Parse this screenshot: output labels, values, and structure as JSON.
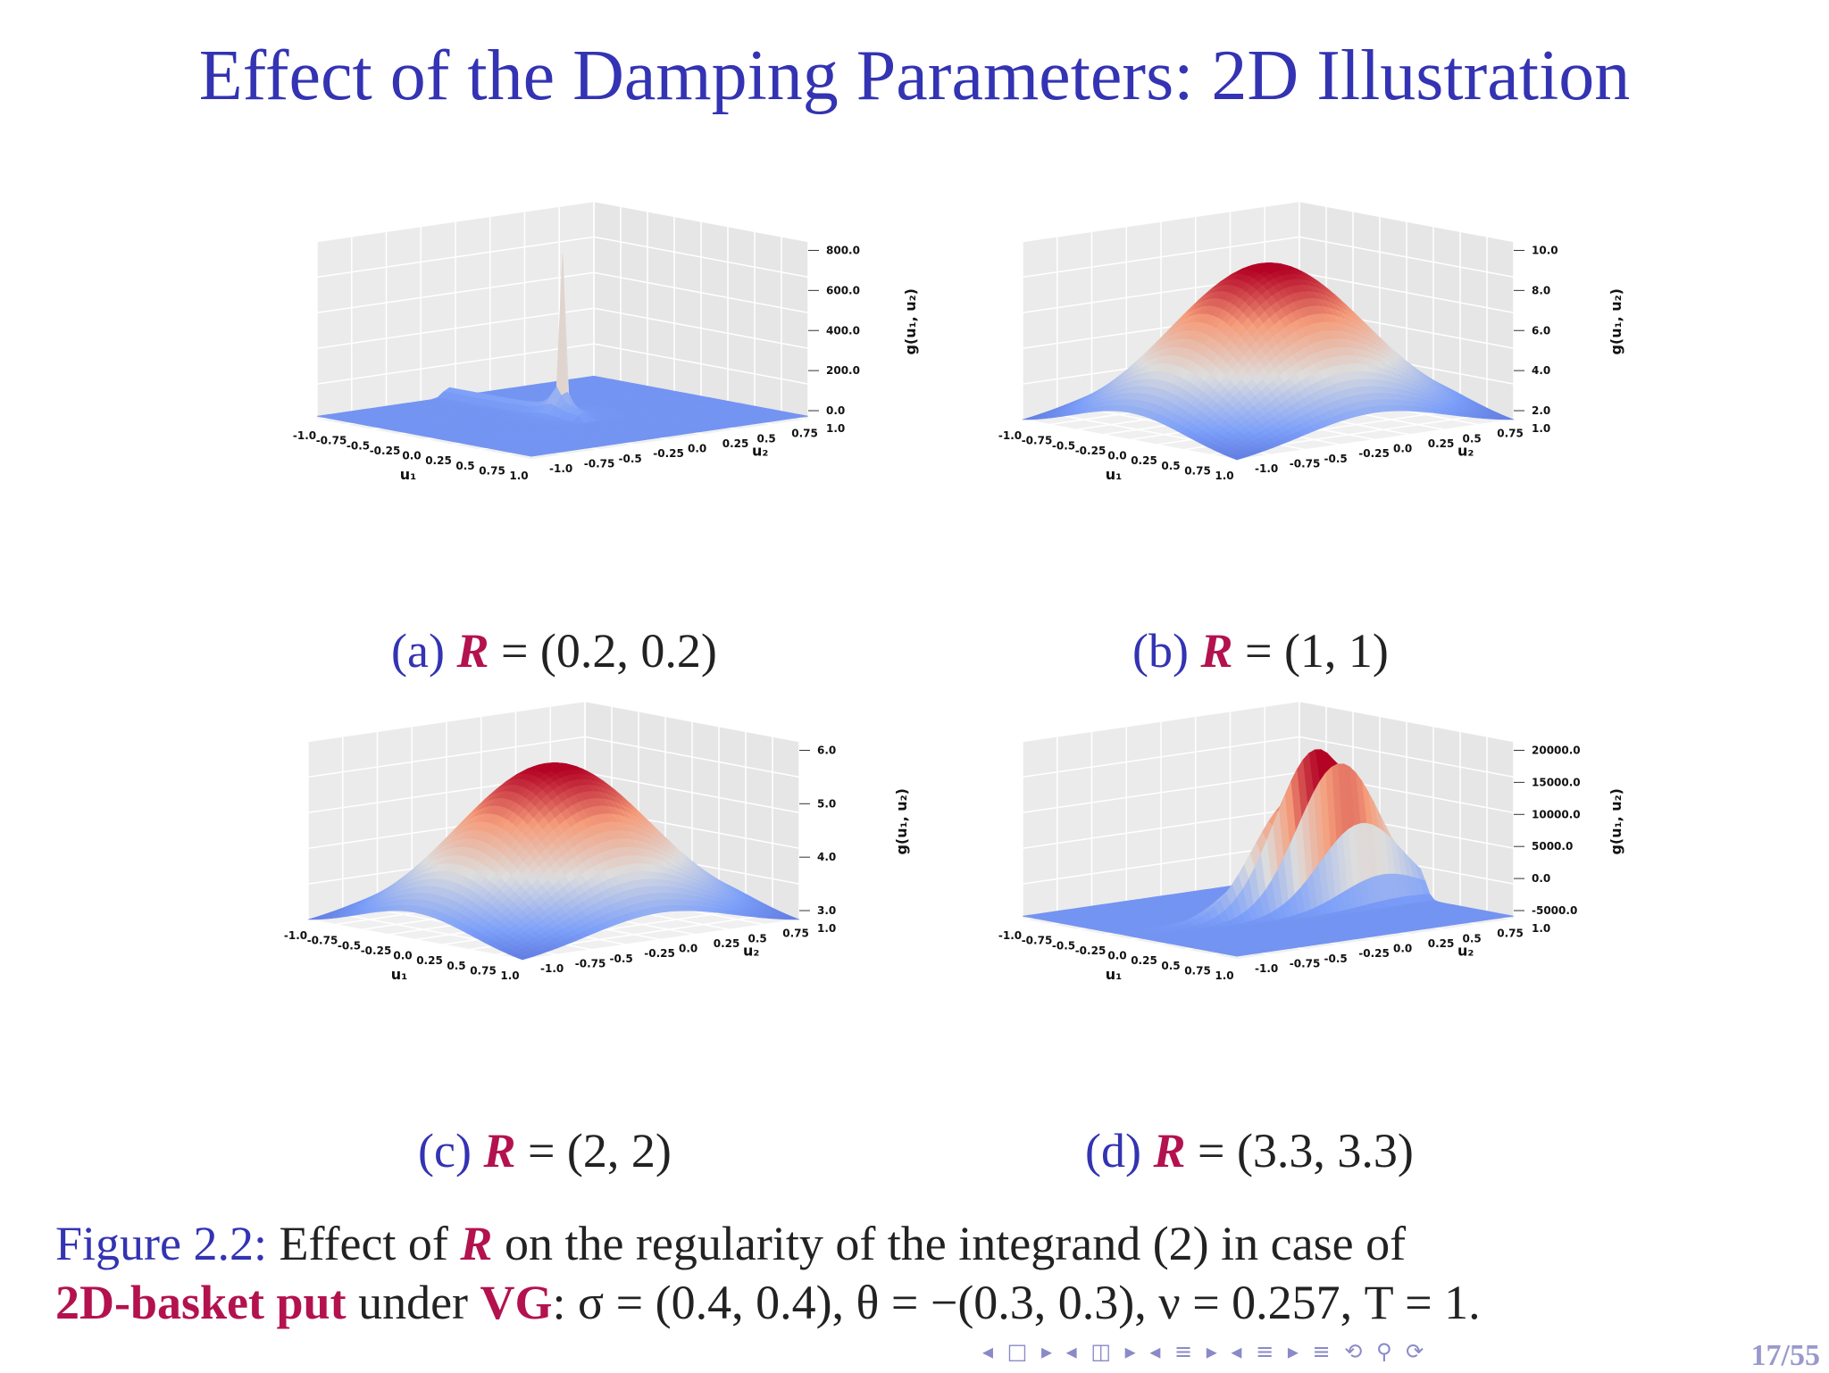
{
  "title": "Effect of the Damping Parameters: 2D Illustration",
  "panels": [
    {
      "label": "(a)",
      "rvalue": "= (0.2, 0.2)",
      "zticks": [
        "800.0",
        "600.0",
        "400.0",
        "200.0",
        "0.0"
      ],
      "shape": "spike"
    },
    {
      "label": "(b)",
      "rvalue": "= (1, 1)",
      "zticks": [
        "10.0",
        "8.0",
        "6.0",
        "4.0",
        "2.0"
      ],
      "shape": "dome"
    },
    {
      "label": "(c)",
      "rvalue": "= (2, 2)",
      "zticks": [
        "6.0",
        "5.0",
        "4.0",
        "3.0"
      ],
      "shape": "dome"
    },
    {
      "label": "(d)",
      "rvalue": "= (3.3, 3.3)",
      "zticks": [
        "20000.0",
        "15000.0",
        "10000.0",
        "5000.0",
        "0.0",
        "-5000.0"
      ],
      "shape": "ridge"
    }
  ],
  "axes": {
    "xticks": [
      "-1.0",
      "-0.75",
      "-0.5",
      "-0.25",
      "0.0",
      "0.25",
      "0.5",
      "0.75",
      "1.0"
    ],
    "yticks": [
      "-1.0",
      "-0.75",
      "-0.5",
      "-0.25",
      "0.0",
      "0.25",
      "0.5",
      "0.75",
      "1.0"
    ],
    "xlabel": "u₁",
    "ylabel": "u₂",
    "zlabel": "g(u₁, u₂)"
  },
  "r_symbol": "R",
  "caption": {
    "fig": "Figure 2.2:",
    "t1": " Effect of ",
    "r": "R",
    "t2": " on the regularity of the integrand (2) in case of",
    "red1": "2D-basket put",
    "t3": " under ",
    "red2": "VG",
    "t4": ": σ = (0.4, 0.4), θ = −(0.3, 0.3), ν = 0.257, T = 1."
  },
  "nav": "◂ □ ▸ ◂ ◫ ▸ ◂ ≡ ▸ ◂ ≡ ▸   ≡   ⟲ ⚲ ⟳",
  "page": "17/55",
  "colors": {
    "title": "#3333b3",
    "accent": "#b3124f"
  }
}
